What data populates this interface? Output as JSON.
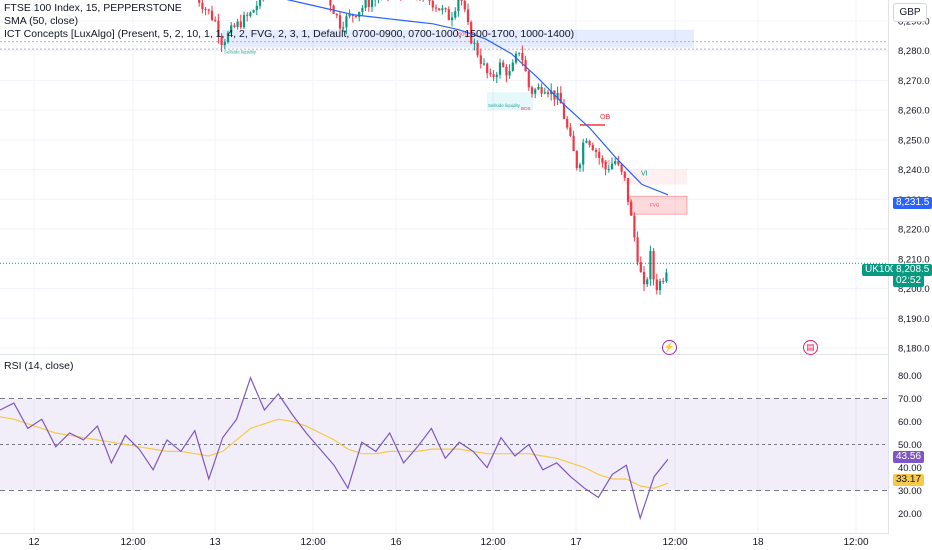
{
  "legend": {
    "symbol": "FTSE 100 Index, 15, PEPPERSTONE",
    "sma": "SMA (50, close)",
    "ict": "ICT Concepts [LuxAlgo] (Present, 5, 2, 10, 1, 1, 4, 2, FVG, 2, 3, 1, Default, 0700-0900, 0700-1000, 1500-1700, 1000-1400)",
    "rsi": "RSI (14, close)"
  },
  "currency": "GBP",
  "price_tags": {
    "symbol_label": "UK100",
    "last_price": "8,208.5",
    "countdown": "02:52",
    "sma_value": "8,231.5",
    "rsi_value": "43.56",
    "rsi_ma_value": "33.17"
  },
  "annotations": {
    "ob": "OB",
    "fvg": "FVG",
    "vi": "VI",
    "bos": "BOS",
    "sell_liq": "Sellside liquidity",
    "buy_liq": "Buyside liquidity"
  },
  "colors": {
    "up": "#089981",
    "down": "#f23645",
    "sma": "#2962ff",
    "rsi": "#7e57c2",
    "rsi_ma": "#f7c948",
    "last_price": "#089981",
    "sma_tag": "#2962ff",
    "rsi_tag_bg": "#7e57c2",
    "rsi_ma_tag_bg": "#f7c948"
  },
  "chart_data": [
    {
      "type": "candlestick",
      "title": "FTSE 100 Index, 15, PEPPERSTONE",
      "ylim": [
        8180,
        8295
      ],
      "y_ticks": [
        "8,290.0",
        "8,280.0",
        "8,270.0",
        "8,260.0",
        "8,250.0",
        "8,240.0",
        "8,230.0",
        "8,220.0",
        "8,210.0",
        "8,200.0",
        "8,190.0",
        "8,180.0"
      ],
      "x_ticks": [
        "12",
        "12:00",
        "13",
        "12:00",
        "16",
        "12:00",
        "17",
        "12:00",
        "18",
        "12:00"
      ],
      "series": [
        {
          "name": "SMA (50, close)",
          "values": [
            8300,
            8298,
            8296,
            8294,
            8292,
            8291,
            8290,
            8289,
            8287,
            8284,
            8279,
            8271,
            8262,
            8254,
            8244,
            8235,
            8231.5
          ]
        }
      ],
      "last_price": 8208.5,
      "grid": true
    },
    {
      "type": "line",
      "title": "RSI (14, close)",
      "ylim": [
        15,
        85
      ],
      "y_ticks": [
        "80.00",
        "70.00",
        "60.00",
        "50.00",
        "40.00",
        "30.00",
        "20.00"
      ],
      "levels": [
        70,
        50,
        30
      ],
      "series": [
        {
          "name": "RSI",
          "values": [
            65,
            68,
            57,
            61,
            49,
            55,
            52,
            58,
            42,
            54,
            48,
            39,
            52,
            47,
            56,
            35,
            53,
            61,
            79,
            65,
            72,
            63,
            55,
            48,
            41,
            31,
            51,
            47,
            55,
            42,
            49,
            57,
            44,
            51,
            47,
            40,
            53,
            45,
            50,
            39,
            42,
            36,
            31,
            27,
            37,
            41,
            18,
            36,
            43.56
          ]
        },
        {
          "name": "RSI MA",
          "values": [
            62,
            61,
            59,
            57,
            55,
            54,
            53,
            52,
            51,
            50,
            49,
            48,
            47,
            47,
            46,
            45,
            47,
            52,
            57,
            59,
            61,
            60,
            58,
            55,
            52,
            48,
            46,
            46,
            47,
            47,
            47,
            48,
            48,
            48,
            47,
            46,
            46,
            46,
            46,
            45,
            44,
            42,
            40,
            37,
            35,
            35,
            32,
            31,
            33.17
          ]
        }
      ]
    }
  ]
}
